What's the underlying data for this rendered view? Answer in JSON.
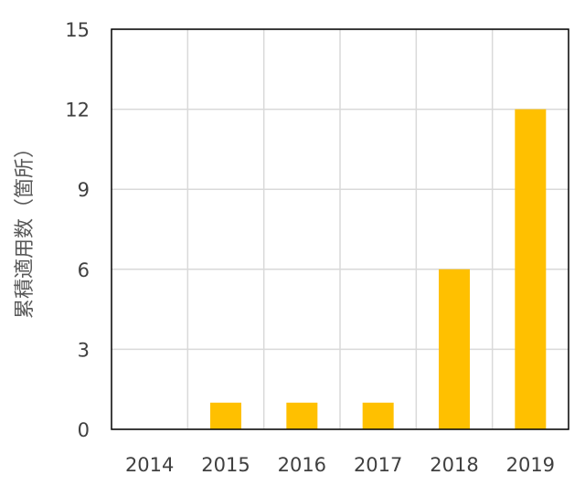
{
  "chart_data": {
    "type": "bar",
    "categories": [
      "2014",
      "2015",
      "2016",
      "2017",
      "2018",
      "2019"
    ],
    "values": [
      0,
      1,
      1,
      1,
      6,
      12
    ],
    "title": "",
    "xlabel": "",
    "ylabel": "累積適用数（箇所）",
    "ylim": [
      0,
      15
    ],
    "yticks": [
      "0",
      "3",
      "6",
      "9",
      "12",
      "15"
    ],
    "grid": true,
    "legend": "none",
    "bar_color": "#FFC000",
    "gridline_color": "#D9D9D9",
    "axis_color": "#000000"
  }
}
